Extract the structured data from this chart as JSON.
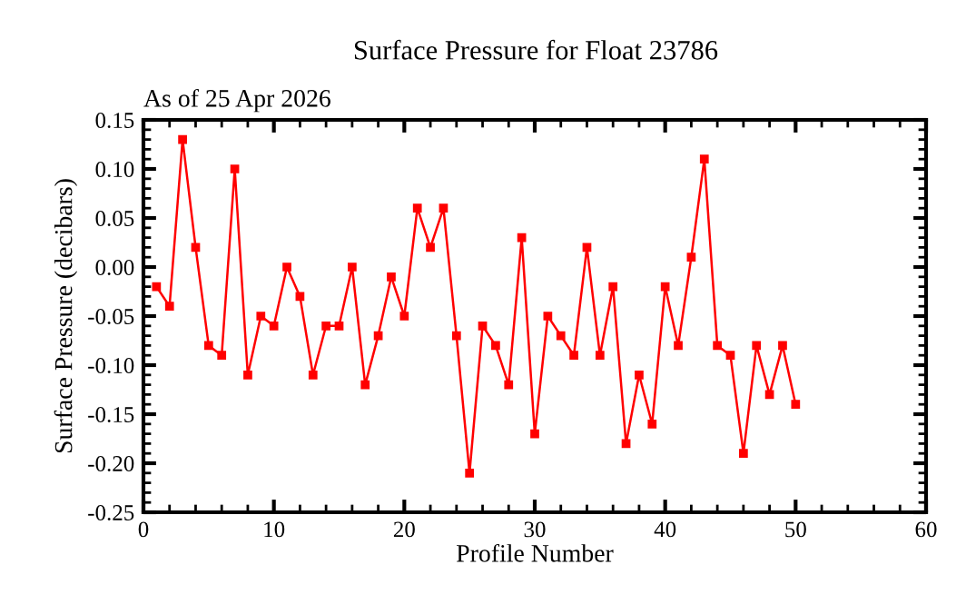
{
  "chart_data": {
    "type": "line",
    "title": "Surface Pressure for Float 23786",
    "subtitle": "As of 25 Apr 2026",
    "xlabel": "Profile Number",
    "ylabel": "Surface Pressure (decibars)",
    "x": [
      1,
      2,
      3,
      4,
      5,
      6,
      7,
      8,
      9,
      10,
      11,
      12,
      13,
      14,
      15,
      16,
      17,
      18,
      19,
      20,
      21,
      22,
      23,
      24,
      25,
      26,
      27,
      28,
      29,
      30,
      31,
      32,
      33,
      34,
      35,
      36,
      37,
      38,
      39,
      40,
      41,
      42,
      43,
      44,
      45,
      46,
      47,
      48,
      49,
      50
    ],
    "series": [
      {
        "color": "#ff0000",
        "values": [
          -0.02,
          -0.04,
          0.13,
          0.02,
          -0.08,
          -0.09,
          0.1,
          -0.11,
          -0.05,
          -0.06,
          0.0,
          -0.03,
          -0.11,
          -0.06,
          -0.06,
          0.0,
          -0.12,
          -0.07,
          -0.01,
          -0.05,
          0.06,
          0.02,
          0.06,
          -0.07,
          -0.21,
          -0.06,
          -0.08,
          -0.12,
          0.03,
          -0.17,
          -0.05,
          -0.07,
          -0.09,
          0.02,
          -0.09,
          -0.02,
          -0.18,
          -0.11,
          -0.16,
          -0.02,
          -0.08,
          0.01,
          0.11,
          -0.08,
          -0.09,
          -0.19,
          -0.08,
          -0.13,
          -0.08,
          -0.14
        ]
      }
    ],
    "xlim": [
      0,
      60
    ],
    "xticks": [
      0,
      10,
      20,
      30,
      40,
      50,
      60
    ],
    "ylim": [
      -0.25,
      0.15
    ],
    "yticks": [
      {
        "value": -0.25,
        "label": "-0.25"
      },
      {
        "value": -0.2,
        "label": "-0.20"
      },
      {
        "value": -0.15,
        "label": "-0.15"
      },
      {
        "value": -0.1,
        "label": "-0.10"
      },
      {
        "value": -0.05,
        "label": "-0.05"
      },
      {
        "value": 0,
        "label": "0.00"
      },
      {
        "value": 0.05,
        "label": "0.05"
      },
      {
        "value": 0.1,
        "label": "0.10"
      },
      {
        "value": 0.15,
        "label": "0.15"
      }
    ],
    "marker": "square",
    "line_style": "solid",
    "grid": false
  }
}
